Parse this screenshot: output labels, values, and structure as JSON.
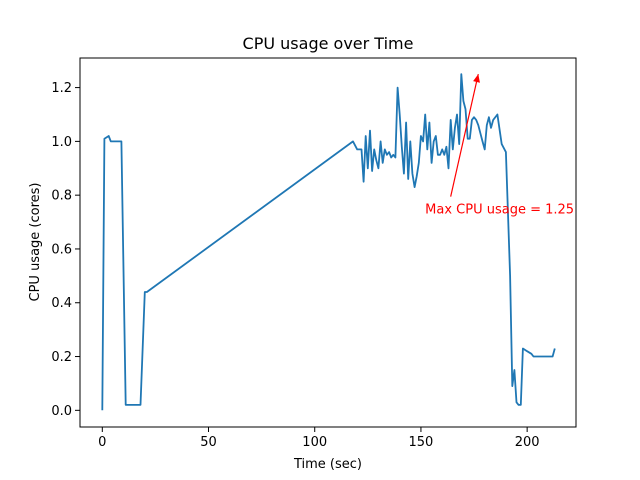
{
  "chart_data": {
    "type": "line",
    "title": "CPU usage over Time",
    "xlabel": "Time (sec)",
    "ylabel": "CPU usage (cores)",
    "xlim": [
      -10.5,
      223
    ],
    "ylim": [
      -0.062,
      1.31
    ],
    "xticks": [
      0,
      50,
      100,
      150,
      200
    ],
    "yticks": [
      0.0,
      0.2,
      0.4,
      0.6,
      0.8,
      1.0,
      1.2
    ],
    "xtick_labels": [
      "0",
      "50",
      "100",
      "150",
      "200"
    ],
    "ytick_labels": [
      "0.0",
      "0.2",
      "0.4",
      "0.6",
      "0.8",
      "1.0",
      "1.2"
    ],
    "grid": false,
    "line_color": "#1f77b4",
    "series": [
      {
        "color": "#1f77b4",
        "x": [
          0,
          1,
          3,
          4,
          6,
          8,
          9,
          11,
          12,
          14,
          15,
          17,
          18,
          20,
          21,
          118,
          120,
          122,
          123,
          124,
          125,
          126,
          127,
          128,
          129,
          130,
          131,
          132,
          133,
          134,
          135,
          136,
          137,
          138,
          139,
          140,
          141,
          142,
          143,
          144,
          145,
          146,
          147,
          148,
          149,
          150,
          151,
          152,
          153,
          154,
          155,
          156,
          157,
          158,
          159,
          160,
          161,
          162,
          163,
          164,
          165,
          166,
          167,
          168,
          169,
          170,
          171,
          172,
          173,
          174,
          175,
          176,
          177,
          178,
          179,
          180,
          181,
          182,
          183,
          184,
          186,
          188,
          190,
          192,
          193,
          194,
          195,
          196,
          197,
          198,
          200,
          202,
          203,
          204,
          205,
          206,
          207,
          208,
          209,
          210,
          211,
          212,
          213
        ],
        "y": [
          0.0,
          1.01,
          1.02,
          1.0,
          1.0,
          1.0,
          1.0,
          0.02,
          0.02,
          0.02,
          0.02,
          0.02,
          0.02,
          0.44,
          0.44,
          1.0,
          0.97,
          0.97,
          0.85,
          1.02,
          0.9,
          1.04,
          0.89,
          0.97,
          0.93,
          0.9,
          1.0,
          0.92,
          0.97,
          0.95,
          0.96,
          0.94,
          0.95,
          0.94,
          1.2,
          1.1,
          0.98,
          0.88,
          1.07,
          0.86,
          1.0,
          0.88,
          0.83,
          0.87,
          0.92,
          1.02,
          1.0,
          1.1,
          0.97,
          1.07,
          0.92,
          1.0,
          1.02,
          0.95,
          0.95,
          0.97,
          0.95,
          0.98,
          0.9,
          1.08,
          0.97,
          1.05,
          1.1,
          0.99,
          1.25,
          1.15,
          1.12,
          1.01,
          1.01,
          1.08,
          1.09,
          1.08,
          1.06,
          1.03,
          1.0,
          0.97,
          1.06,
          1.09,
          1.05,
          1.08,
          1.1,
          0.99,
          0.96,
          0.5,
          0.09,
          0.15,
          0.03,
          0.02,
          0.02,
          0.23,
          0.22,
          0.21,
          0.2,
          0.2,
          0.2,
          0.2,
          0.2,
          0.2,
          0.2,
          0.2,
          0.2,
          0.2,
          0.23
        ]
      }
    ],
    "annotation": {
      "text": "Max CPU usage = 1.25",
      "text_x": 152,
      "text_y": 0.75,
      "arrow_x": 177,
      "arrow_y": 1.25,
      "color": "#ff0000"
    }
  }
}
